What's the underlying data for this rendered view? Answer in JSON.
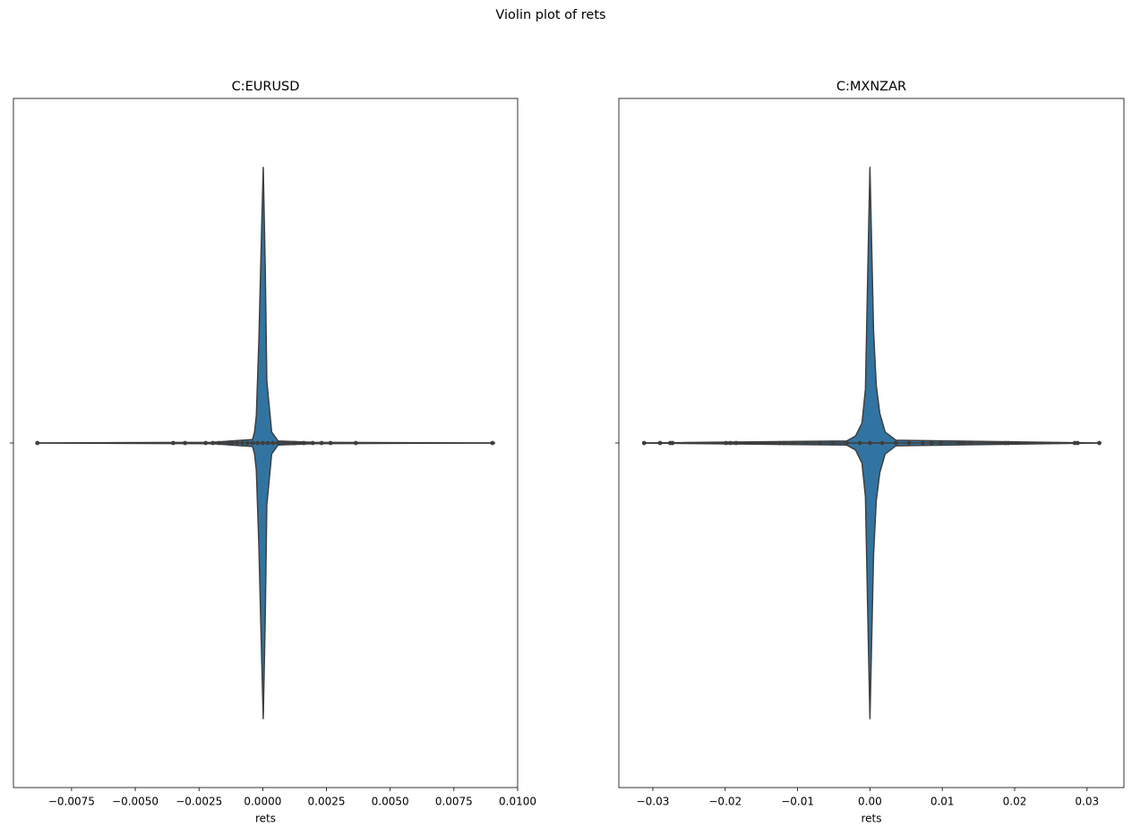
{
  "title": "Violin plot of rets",
  "chart_data": [
    {
      "type": "violin",
      "title": "C:EURUSD",
      "xlabel": "rets",
      "xlim": [
        -0.00978,
        0.01
      ],
      "xticks": [
        {
          "value": -0.0075,
          "label": "−0.0075"
        },
        {
          "value": -0.005,
          "label": "−0.0050"
        },
        {
          "value": -0.0025,
          "label": "−0.0025"
        },
        {
          "value": 0,
          "label": "0.0000"
        },
        0.0025,
        {
          "value": 0.005,
          "label": "0.0050"
        },
        0.0075,
        {
          "value": 0.01,
          "label": "0.0100"
        }
      ],
      "ylim": [
        -0.5,
        0.5
      ],
      "categories": [
        null
      ],
      "color": "#3274a1",
      "edgecolor": "#3f3f3f",
      "x": [
        -0.0088,
        -0.002,
        -0.0004,
        -0.00032,
        -0.00025,
        -0.00015,
        -5e-05,
        2e-05,
        0.0001,
        0.00016,
        0.00035,
        0.0006,
        0.002,
        0.0091
      ],
      "widths": [
        0,
        0.001,
        0.005,
        0.016,
        0.04,
        0.15,
        0.3,
        0.4,
        0.25,
        0.09,
        0.016,
        0.003,
        0.001,
        0
      ],
      "points": [
        -0.00884,
        -0.00351,
        -0.00305,
        -0.00224,
        -0.00196,
        -0.00172,
        -0.00137,
        -0.0012,
        -0.001,
        -0.0008,
        -0.0006,
        -0.0004,
        -0.0002,
        0,
        0.0002,
        0.0004,
        0.0006,
        0.0008,
        0.001,
        0.0012,
        0.00126,
        0.00161,
        0.00196,
        0.00231,
        0.00266,
        0.00365,
        0.00901
      ]
    },
    {
      "type": "violin",
      "title": "C:MXNZAR",
      "xlabel": "rets",
      "xlim": [
        -0.0347,
        0.0351
      ],
      "xticks": [
        {
          "value": -0.03,
          "label": "−0.03"
        },
        {
          "value": -0.02,
          "label": "−0.02"
        },
        {
          "value": -0.01,
          "label": "−0.01"
        },
        {
          "value": 0,
          "label": "0.00"
        },
        0.01,
        0.02,
        0.03
      ],
      "ylim": [
        -0.5,
        0.5
      ],
      "categories": [
        null
      ],
      "color": "#3274a1",
      "edgecolor": "#3f3f3f",
      "x": [
        -0.0314,
        -0.0032,
        -0.002,
        -0.0011,
        -0.00062,
        -0.0002,
        0,
        0.0005,
        0.00087,
        0.00136,
        0.0021,
        0.0036,
        0.0315
      ],
      "widths": [
        0,
        0.003,
        0.01,
        0.029,
        0.078,
        0.3,
        0.4,
        0.162,
        0.084,
        0.043,
        0.016,
        0.004,
        0
      ],
      "points": [
        -0.0312,
        -0.029,
        -0.0276,
        -0.0273,
        -0.0199,
        -0.0193,
        -0.0185,
        -0.0125,
        -0.0119,
        -0.0106,
        -0.0088,
        -0.0069,
        -0.0051,
        -0.0032,
        -0.0014,
        0,
        0.0017,
        0.0036,
        0.0054,
        0.0073,
        0.0085,
        0.0098,
        0.0123,
        0.0129,
        0.0139,
        0.0187,
        0.0191,
        0.0283,
        0.0287,
        0.0317
      ]
    }
  ]
}
